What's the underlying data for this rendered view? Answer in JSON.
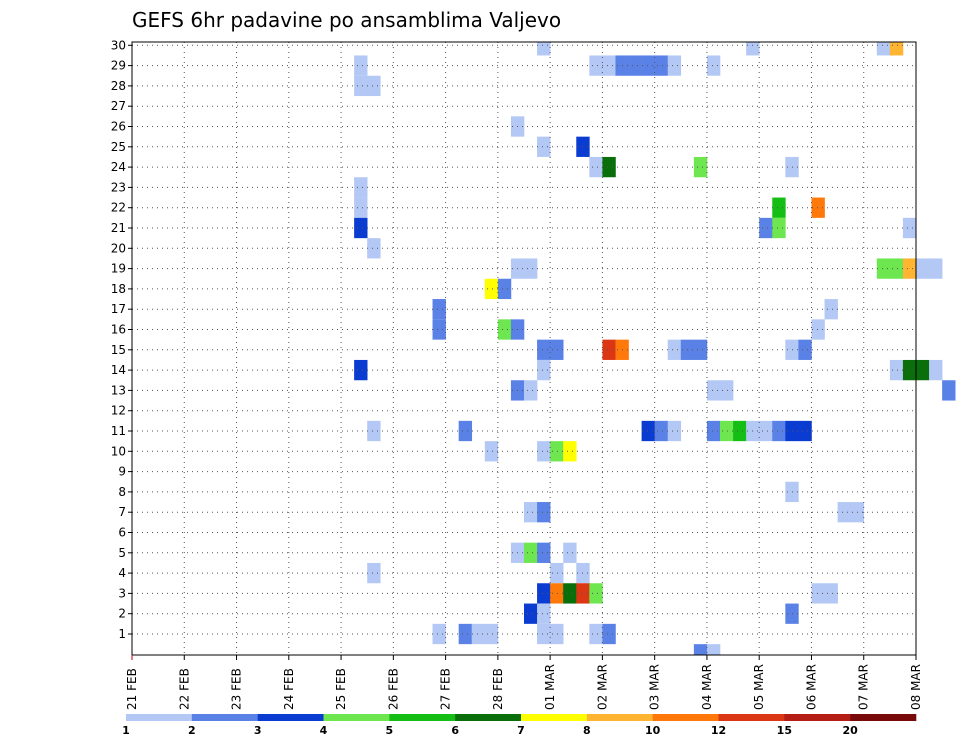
{
  "chart_data": {
    "type": "heatmap",
    "title": "GEFS 6hr padavine po ansamblima Valjevo",
    "x_labels": [
      "21 FEB",
      "22 FEB",
      "23 FEB",
      "24 FEB",
      "25 FEB",
      "26 FEB",
      "27 FEB",
      "28 FEB",
      "01 MAR",
      "02 MAR",
      "03 MAR",
      "04 MAR",
      "05 MAR",
      "06 MAR",
      "07 MAR",
      "08 MAR"
    ],
    "steps_per_day": 4,
    "y_labels": [
      "1",
      "2",
      "3",
      "4",
      "5",
      "6",
      "7",
      "8",
      "9",
      "10",
      "11",
      "12",
      "13",
      "14",
      "15",
      "16",
      "17",
      "18",
      "19",
      "20",
      "21",
      "22",
      "23",
      "24",
      "25",
      "26",
      "27",
      "28",
      "29",
      "30"
    ],
    "legend": {
      "labels": [
        "1",
        "2",
        "3",
        "4",
        "5",
        "6",
        "7",
        "8",
        "10",
        "12",
        "15",
        "20"
      ],
      "colors": [
        "#b4c8f5",
        "#5a82e6",
        "#0a3cd2",
        "#6ee650",
        "#14be14",
        "#0a6e0a",
        "#ffff00",
        "#ffb432",
        "#ff780a",
        "#dc3714",
        "#b41e14",
        "#780a0a"
      ]
    },
    "grid": true,
    "cells": [
      {
        "member": 30,
        "step": 31,
        "value": 1
      },
      {
        "member": 30,
        "step": 47,
        "value": 1
      },
      {
        "member": 30,
        "step": 57,
        "value": 1
      },
      {
        "member": 30,
        "step": 58,
        "value": 8
      },
      {
        "member": 29,
        "step": 17,
        "value": 1
      },
      {
        "member": 29,
        "step": 35,
        "value": 1
      },
      {
        "member": 29,
        "step": 36,
        "value": 1
      },
      {
        "member": 29,
        "step": 37,
        "value": 2
      },
      {
        "member": 29,
        "step": 38,
        "value": 2
      },
      {
        "member": 29,
        "step": 39,
        "value": 2
      },
      {
        "member": 29,
        "step": 40,
        "value": 2
      },
      {
        "member": 29,
        "step": 41,
        "value": 1
      },
      {
        "member": 29,
        "step": 44,
        "value": 1
      },
      {
        "member": 28,
        "step": 17,
        "value": 1
      },
      {
        "member": 28,
        "step": 18,
        "value": 1
      },
      {
        "member": 26,
        "step": 29,
        "value": 1
      },
      {
        "member": 25,
        "step": 31,
        "value": 1
      },
      {
        "member": 25,
        "step": 34,
        "value": 3
      },
      {
        "member": 24,
        "step": 35,
        "value": 1
      },
      {
        "member": 24,
        "step": 36,
        "value": 6
      },
      {
        "member": 24,
        "step": 43,
        "value": 4
      },
      {
        "member": 24,
        "step": 50,
        "value": 1
      },
      {
        "member": 23,
        "step": 17,
        "value": 1
      },
      {
        "member": 22,
        "step": 52,
        "value": 10
      },
      {
        "member": 22,
        "step": 17,
        "value": 1
      },
      {
        "member": 22,
        "step": 49,
        "value": 5
      },
      {
        "member": 21,
        "step": 17,
        "value": 3
      },
      {
        "member": 21,
        "step": 48,
        "value": 2
      },
      {
        "member": 21,
        "step": 49,
        "value": 4
      },
      {
        "member": 21,
        "step": 59,
        "value": 1
      },
      {
        "member": 20,
        "step": 18,
        "value": 1
      },
      {
        "member": 19,
        "step": 29,
        "value": 1
      },
      {
        "member": 19,
        "step": 30,
        "value": 1
      },
      {
        "member": 19,
        "step": 57,
        "value": 4
      },
      {
        "member": 19,
        "step": 58,
        "value": 4
      },
      {
        "member": 19,
        "step": 59,
        "value": 8
      },
      {
        "member": 19,
        "step": 60,
        "value": 1
      },
      {
        "member": 19,
        "step": 61,
        "value": 1
      },
      {
        "member": 18,
        "step": 27,
        "value": 7
      },
      {
        "member": 18,
        "step": 28,
        "value": 2
      },
      {
        "member": 17,
        "step": 53,
        "value": 1
      },
      {
        "member": 17,
        "step": 23,
        "value": 2
      },
      {
        "member": 16,
        "step": 23,
        "value": 2
      },
      {
        "member": 16,
        "step": 28,
        "value": 4
      },
      {
        "member": 16,
        "step": 29,
        "value": 2
      },
      {
        "member": 16,
        "step": 52,
        "value": 1
      },
      {
        "member": 15,
        "step": 31,
        "value": 2
      },
      {
        "member": 15,
        "step": 32,
        "value": 2
      },
      {
        "member": 15,
        "step": 36,
        "value": 12
      },
      {
        "member": 15,
        "step": 37,
        "value": 10
      },
      {
        "member": 15,
        "step": 41,
        "value": 1
      },
      {
        "member": 15,
        "step": 42,
        "value": 2
      },
      {
        "member": 15,
        "step": 43,
        "value": 2
      },
      {
        "member": 15,
        "step": 50,
        "value": 1
      },
      {
        "member": 15,
        "step": 51,
        "value": 2
      },
      {
        "member": 14,
        "step": 17,
        "value": 3
      },
      {
        "member": 14,
        "step": 31,
        "value": 1
      },
      {
        "member": 14,
        "step": 58,
        "value": 1
      },
      {
        "member": 14,
        "step": 59,
        "value": 6
      },
      {
        "member": 14,
        "step": 60,
        "value": 6
      },
      {
        "member": 14,
        "step": 61,
        "value": 1
      },
      {
        "member": 13,
        "step": 29,
        "value": 2
      },
      {
        "member": 13,
        "step": 30,
        "value": 1
      },
      {
        "member": 13,
        "step": 44,
        "value": 1
      },
      {
        "member": 13,
        "step": 45,
        "value": 1
      },
      {
        "member": 13,
        "step": 62,
        "value": 2
      },
      {
        "member": 11,
        "step": 18,
        "value": 1
      },
      {
        "member": 11,
        "step": 25,
        "value": 2
      },
      {
        "member": 11,
        "step": 39,
        "value": 3
      },
      {
        "member": 11,
        "step": 40,
        "value": 2
      },
      {
        "member": 11,
        "step": 41,
        "value": 1
      },
      {
        "member": 11,
        "step": 44,
        "value": 2
      },
      {
        "member": 11,
        "step": 45,
        "value": 4
      },
      {
        "member": 11,
        "step": 46,
        "value": 5
      },
      {
        "member": 11,
        "step": 47,
        "value": 1
      },
      {
        "member": 11,
        "step": 48,
        "value": 1
      },
      {
        "member": 11,
        "step": 49,
        "value": 2
      },
      {
        "member": 11,
        "step": 50,
        "value": 3
      },
      {
        "member": 11,
        "step": 51,
        "value": 3
      },
      {
        "member": 10,
        "step": 27,
        "value": 1
      },
      {
        "member": 10,
        "step": 31,
        "value": 1
      },
      {
        "member": 10,
        "step": 32,
        "value": 4
      },
      {
        "member": 10,
        "step": 33,
        "value": 7
      },
      {
        "member": 8,
        "step": 50,
        "value": 1
      },
      {
        "member": 7,
        "step": 30,
        "value": 1
      },
      {
        "member": 7,
        "step": 31,
        "value": 2
      },
      {
        "member": 7,
        "step": 54,
        "value": 1
      },
      {
        "member": 7,
        "step": 55,
        "value": 1
      },
      {
        "member": 5,
        "step": 29,
        "value": 1
      },
      {
        "member": 5,
        "step": 30,
        "value": 4
      },
      {
        "member": 5,
        "step": 31,
        "value": 2
      },
      {
        "member": 5,
        "step": 33,
        "value": 1
      },
      {
        "member": 4,
        "step": 18,
        "value": 1
      },
      {
        "member": 4,
        "step": 32,
        "value": 1
      },
      {
        "member": 4,
        "step": 34,
        "value": 1
      },
      {
        "member": 3,
        "step": 31,
        "value": 3
      },
      {
        "member": 3,
        "step": 32,
        "value": 10
      },
      {
        "member": 3,
        "step": 33,
        "value": 6
      },
      {
        "member": 3,
        "step": 34,
        "value": 12
      },
      {
        "member": 3,
        "step": 35,
        "value": 4
      },
      {
        "member": 3,
        "step": 52,
        "value": 1
      },
      {
        "member": 3,
        "step": 53,
        "value": 1
      },
      {
        "member": 2,
        "step": 30,
        "value": 3
      },
      {
        "member": 2,
        "step": 31,
        "value": 1
      },
      {
        "member": 2,
        "step": 50,
        "value": 2
      },
      {
        "member": 1,
        "step": 23,
        "value": 1
      },
      {
        "member": 1,
        "step": 25,
        "value": 2
      },
      {
        "member": 1,
        "step": 26,
        "value": 1
      },
      {
        "member": 1,
        "step": 27,
        "value": 1
      },
      {
        "member": 1,
        "step": 31,
        "value": 1
      },
      {
        "member": 1,
        "step": 32,
        "value": 1
      },
      {
        "member": 1,
        "step": 35,
        "value": 1
      },
      {
        "member": 1,
        "step": 36,
        "value": 2
      },
      {
        "member": 0,
        "step": 43,
        "value": 2
      },
      {
        "member": 0,
        "step": 44,
        "value": 1
      }
    ]
  }
}
